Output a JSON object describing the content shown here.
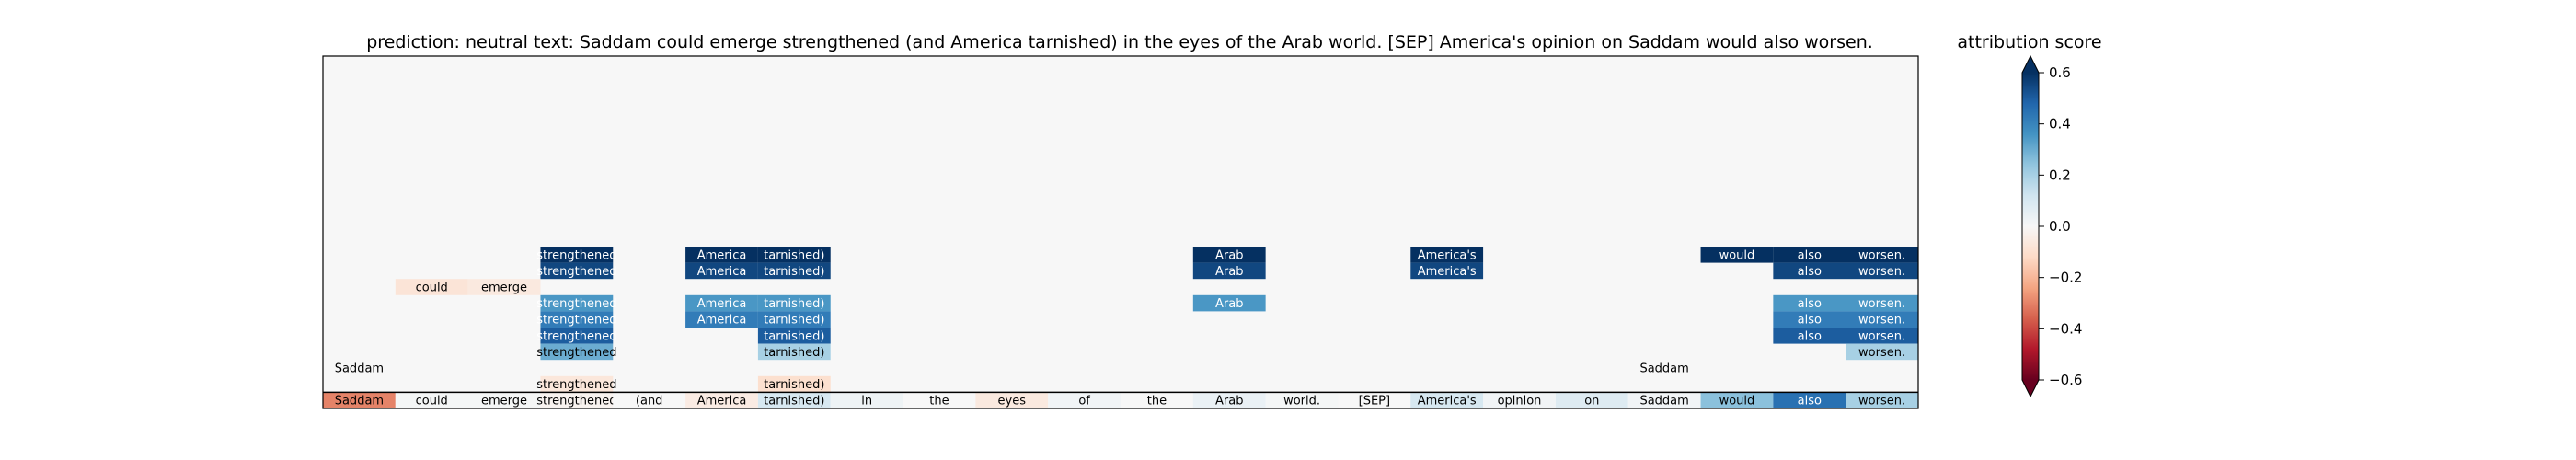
{
  "header": {
    "prediction_label": "prediction:",
    "prediction_value": "neutral",
    "text_label": "text:",
    "text_value": "Saddam could emerge strengthened (and America tarnished) in the eyes of the Arab world. [SEP] America's opinion on Saddam would also worsen."
  },
  "colorbar": {
    "title": "attribution score",
    "ticks": [
      "0.6",
      "0.4",
      "0.2",
      "0.0",
      "−0.2",
      "−0.4",
      "−0.6"
    ]
  },
  "chart_data": {
    "type": "heatmap",
    "title": "prediction:  neutral     text:  Saddam could emerge strengthened (and America tarnished) in the eyes of the Arab world. [SEP] America's opinion on Saddam would also worsen.",
    "colormap": "RdBu",
    "vmin": -0.6,
    "vmax": 0.6,
    "extend": "both",
    "tokens": [
      "Saddam",
      "could",
      "emerge",
      "strengthened",
      "(and",
      "America",
      "tarnished)",
      "in",
      "the",
      "eyes",
      "of",
      "the",
      "Arab",
      "world.",
      "[SEP]",
      "America's",
      "opinion",
      "on",
      "Saddam",
      "would",
      "also",
      "worsen."
    ],
    "token_row_values": [
      -0.3,
      0.01,
      0.01,
      -0.02,
      0.0,
      -0.05,
      0.1,
      0.03,
      0.0,
      -0.06,
      0.02,
      0.0,
      0.04,
      0.01,
      0.0,
      0.1,
      0.02,
      0.08,
      0.02,
      0.25,
      0.45,
      0.2
    ],
    "rows": [
      [
        null,
        null,
        null,
        0.7,
        null,
        0.65,
        0.7,
        null,
        null,
        null,
        null,
        null,
        0.7,
        null,
        null,
        0.7,
        null,
        null,
        null,
        0.7,
        0.7,
        0.7
      ],
      [
        null,
        null,
        null,
        0.55,
        null,
        0.55,
        0.55,
        null,
        null,
        null,
        null,
        null,
        0.55,
        null,
        null,
        0.55,
        null,
        null,
        null,
        null,
        0.55,
        0.55
      ],
      [
        null,
        -0.08,
        -0.06,
        null,
        null,
        null,
        null,
        null,
        null,
        null,
        null,
        null,
        null,
        null,
        null,
        null,
        null,
        null,
        null,
        null,
        null,
        null
      ],
      [
        null,
        null,
        null,
        0.35,
        null,
        0.35,
        0.35,
        null,
        null,
        null,
        null,
        null,
        0.35,
        null,
        null,
        null,
        null,
        null,
        null,
        null,
        0.35,
        0.35
      ],
      [
        null,
        null,
        null,
        0.42,
        null,
        0.42,
        0.42,
        null,
        null,
        null,
        null,
        null,
        null,
        null,
        null,
        null,
        null,
        null,
        null,
        null,
        0.42,
        0.42
      ],
      [
        null,
        null,
        null,
        0.5,
        null,
        null,
        0.5,
        null,
        null,
        null,
        null,
        null,
        null,
        null,
        null,
        null,
        null,
        null,
        null,
        null,
        0.5,
        0.5
      ],
      [
        null,
        null,
        null,
        0.3,
        null,
        null,
        0.2,
        null,
        null,
        null,
        null,
        null,
        null,
        null,
        null,
        null,
        null,
        null,
        null,
        null,
        null,
        0.2
      ],
      [
        0.0,
        null,
        null,
        null,
        null,
        null,
        null,
        null,
        null,
        null,
        null,
        null,
        null,
        null,
        null,
        null,
        null,
        null,
        0.0,
        null,
        null,
        null
      ],
      [
        null,
        null,
        null,
        -0.07,
        null,
        null,
        -0.1,
        null,
        null,
        null,
        null,
        null,
        null,
        null,
        null,
        null,
        null,
        null,
        null,
        null,
        null,
        null
      ]
    ]
  }
}
